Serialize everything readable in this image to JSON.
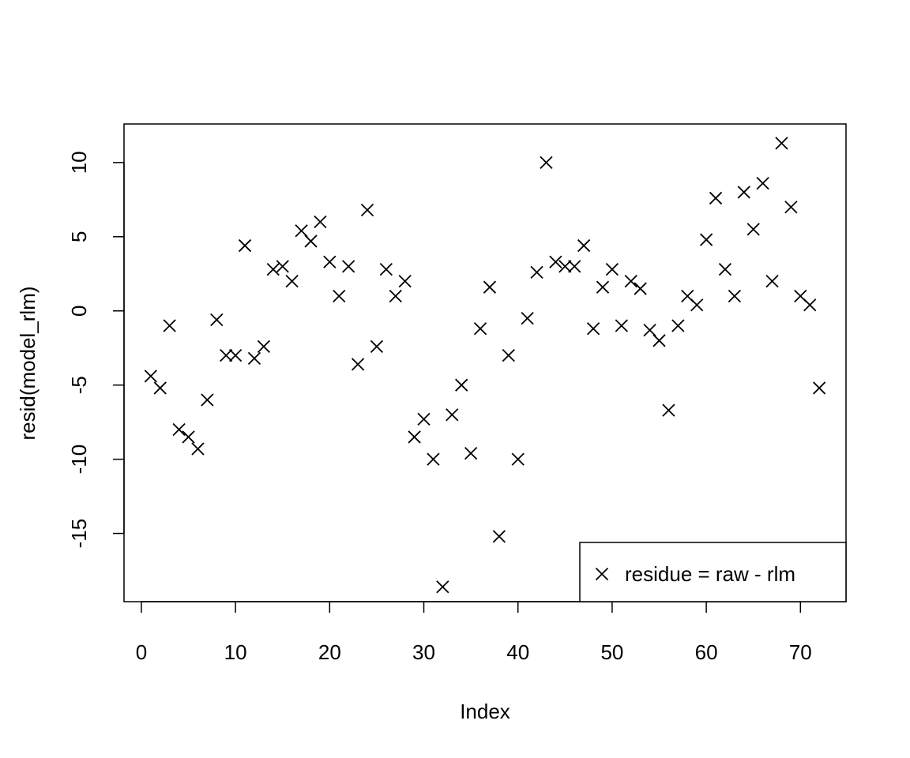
{
  "chart_data": {
    "type": "scatter",
    "title": "",
    "xlabel": "Index",
    "ylabel": "resid(model_rlm)",
    "xlim": [
      -1.84,
      74.84
    ],
    "ylim": [
      -19.6,
      12.6
    ],
    "x_ticks": [
      0,
      10,
      20,
      30,
      40,
      50,
      60,
      70
    ],
    "y_ticks": [
      -15,
      -10,
      -5,
      0,
      5,
      10
    ],
    "grid": false,
    "marker": "x",
    "marker_color": "#000000",
    "legend": {
      "position": "bottom-right",
      "entries": [
        "residue = raw - rlm"
      ]
    },
    "series": [
      {
        "name": "residue = raw - rlm",
        "x": [
          1,
          2,
          3,
          4,
          5,
          6,
          7,
          8,
          9,
          10,
          11,
          12,
          13,
          14,
          15,
          16,
          17,
          18,
          19,
          20,
          21,
          22,
          23,
          24,
          25,
          26,
          27,
          28,
          29,
          30,
          31,
          32,
          33,
          34,
          35,
          36,
          37,
          38,
          39,
          40,
          41,
          42,
          43,
          44,
          45,
          46,
          47,
          48,
          49,
          50,
          51,
          52,
          53,
          54,
          55,
          56,
          57,
          58,
          59,
          60,
          61,
          62,
          63,
          64,
          65,
          66,
          67,
          68,
          69,
          70,
          71,
          72
        ],
        "y": [
          -4.4,
          -5.2,
          -1.0,
          -8.0,
          -8.5,
          -9.3,
          -6.0,
          -0.6,
          -3.0,
          -3.0,
          4.4,
          -3.2,
          -2.4,
          2.8,
          3.0,
          2.0,
          5.4,
          4.7,
          6.0,
          3.3,
          1.0,
          3.0,
          -3.6,
          6.8,
          -2.4,
          2.8,
          1.0,
          2.0,
          -8.5,
          -7.3,
          -10.0,
          -18.6,
          -7.0,
          -5.0,
          -9.6,
          -1.2,
          1.6,
          -15.2,
          -3.0,
          -10.0,
          -0.5,
          2.6,
          10.0,
          3.3,
          3.0,
          3.0,
          4.4,
          -1.2,
          1.6,
          2.8,
          -1.0,
          2.0,
          1.5,
          -1.3,
          -2.0,
          -6.7,
          -1.0,
          1.0,
          0.4,
          4.8,
          7.6,
          2.8,
          1.0,
          8.0,
          5.5,
          8.6,
          2.0,
          11.3,
          7.0,
          1.0,
          0.4,
          -5.2
        ]
      }
    ]
  }
}
